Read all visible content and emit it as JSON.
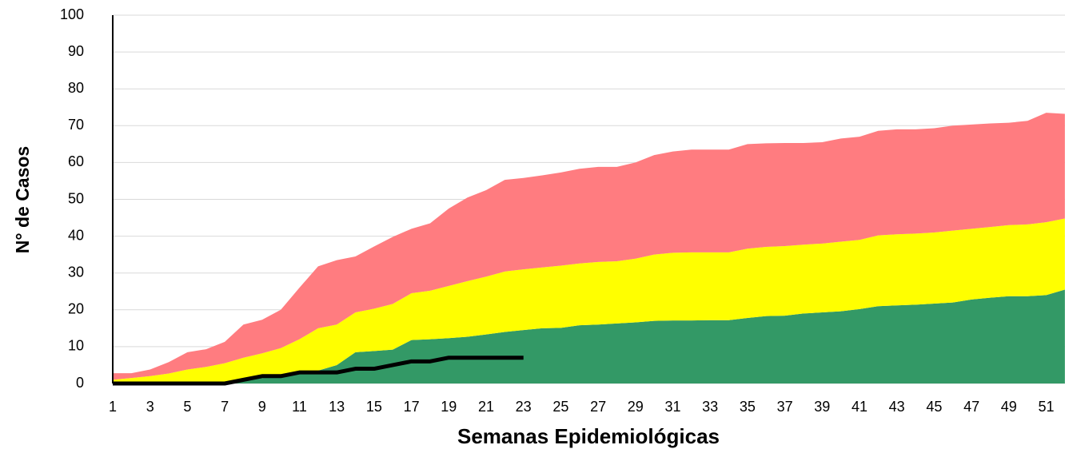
{
  "chart_data": {
    "type": "area",
    "x_label": "Semanas Epidemiológicas",
    "y_label": "N° de Casos",
    "categories": [
      "1",
      null,
      "3",
      null,
      "5",
      null,
      "7",
      null,
      "9",
      null,
      "11",
      null,
      "13",
      null,
      "15",
      null,
      "17",
      null,
      "19",
      null,
      "21",
      null,
      "23",
      null,
      "25",
      null,
      "27",
      null,
      "29",
      null,
      "31",
      null,
      "33",
      null,
      "35",
      null,
      "37",
      null,
      "39",
      null,
      "41",
      null,
      "43",
      null,
      "45",
      null,
      "47",
      null,
      "49",
      null,
      "51",
      null
    ],
    "series": [
      {
        "color": "#339966",
        "values": [
          0.5,
          0.5,
          0.5,
          0.5,
          0.5,
          0.5,
          0.5,
          0.7,
          1.5,
          1.8,
          3,
          3.5,
          5,
          8.5,
          8.8,
          9.2,
          11.8,
          12,
          12.3,
          12.7,
          13.3,
          14,
          14.5,
          15,
          15.1,
          15.8,
          16,
          16.3,
          16.6,
          17,
          17.1,
          17.1,
          17.2,
          17.2,
          17.8,
          18.3,
          18.4,
          19,
          19.3,
          19.6,
          20.2,
          21,
          21.2,
          21.4,
          21.7,
          22,
          22.8,
          23.3,
          23.7,
          23.7,
          24,
          25.5
        ]
      },
      {
        "color": "#ffff00",
        "values": [
          0.5,
          1,
          1.5,
          2.2,
          3.3,
          4,
          5,
          6.3,
          6.7,
          7.8,
          9,
          11.5,
          11,
          10.8,
          11.5,
          12.4,
          12.7,
          13.2,
          14.2,
          15.1,
          15.7,
          16.4,
          16.5,
          16.5,
          16.9,
          16.8,
          17,
          16.9,
          17.3,
          18,
          18.4,
          18.5,
          18.4,
          18.4,
          18.8,
          18.8,
          18.9,
          18.7,
          18.7,
          18.9,
          18.8,
          19.2,
          19.3,
          19.3,
          19.3,
          19.5,
          19.2,
          19.2,
          19.3,
          19.5,
          19.8,
          19.3
        ]
      },
      {
        "color": "#ff7c80",
        "values": [
          1.8,
          1.3,
          1.8,
          3.1,
          4.7,
          4.8,
          5.8,
          9,
          9.1,
          10.4,
          14,
          16.8,
          17.5,
          15.2,
          16.9,
          18.2,
          17.5,
          18.3,
          21,
          22.7,
          23.5,
          24.9,
          24.8,
          25,
          25.3,
          25.7,
          25.8,
          25.6,
          26.1,
          27,
          27.5,
          27.9,
          27.9,
          27.9,
          28.4,
          28.1,
          28,
          27.6,
          27.5,
          28,
          28,
          28.4,
          28.5,
          28.3,
          28.3,
          28.5,
          28.3,
          28.1,
          27.8,
          28.1,
          29.7,
          28.4
        ]
      },
      {
        "type": "line",
        "color": "#000000",
        "values": [
          0,
          0,
          0,
          0,
          0,
          0,
          0,
          1,
          2,
          2,
          3,
          3,
          3,
          4,
          4,
          5,
          6,
          6,
          7,
          7,
          7,
          7,
          7,
          null,
          null,
          null,
          null,
          null,
          null,
          null,
          null,
          null,
          null,
          null,
          null,
          null,
          null,
          null,
          null,
          null,
          null,
          null,
          null,
          null,
          null,
          null,
          null,
          null,
          null,
          null,
          null,
          null
        ]
      }
    ],
    "ylim": [
      0,
      100
    ],
    "yticks": [
      0,
      10,
      20,
      30,
      40,
      50,
      60,
      70,
      80,
      90,
      100
    ],
    "grid": true
  }
}
